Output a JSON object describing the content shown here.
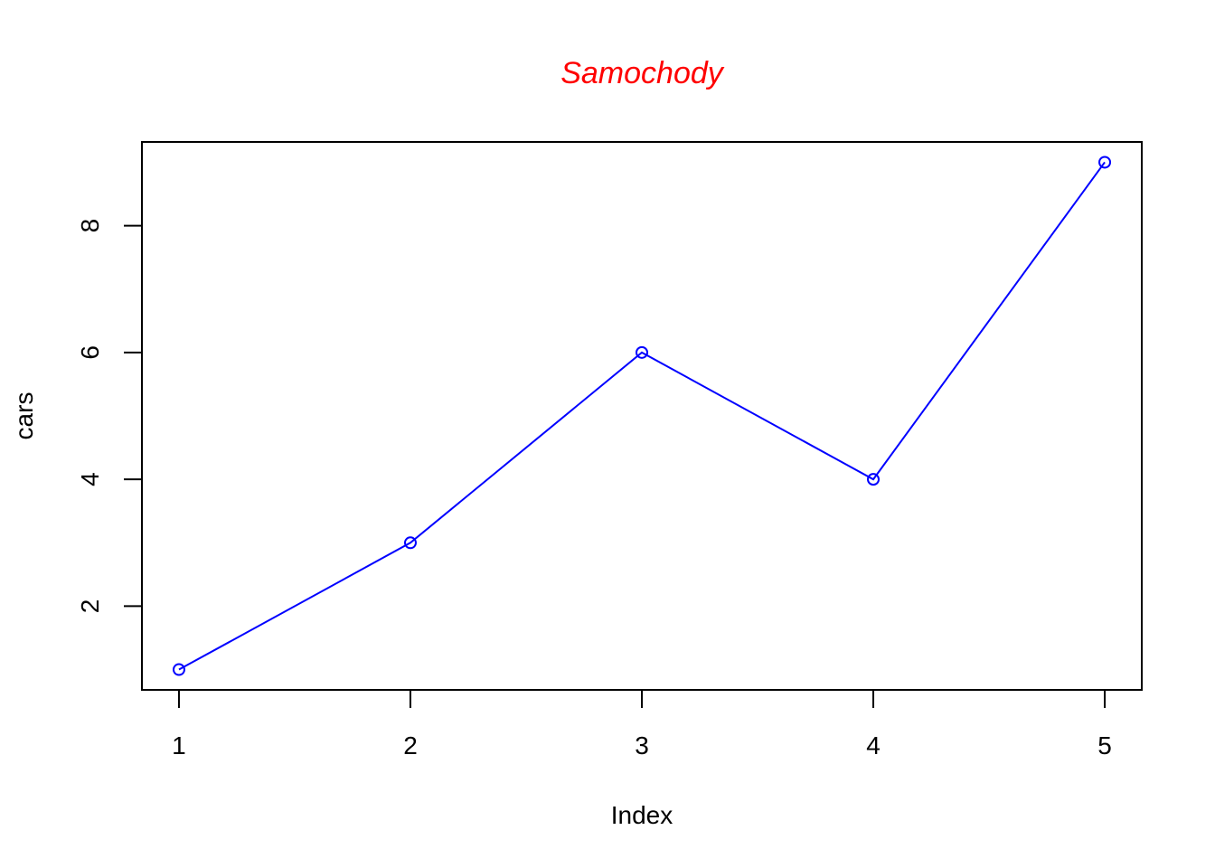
{
  "chart_data": {
    "type": "line",
    "title": "Samochody",
    "title_color": "#ff0000",
    "xlabel": "Index",
    "ylabel": "cars",
    "x": [
      1,
      2,
      3,
      4,
      5
    ],
    "series": [
      {
        "values": [
          1,
          3,
          6,
          4,
          9
        ],
        "color": "#0000ff",
        "marker": "open-circle"
      }
    ],
    "xlim": [
      0.84,
      5.16
    ],
    "ylim": [
      0.68,
      9.32
    ],
    "x_ticks": [
      1,
      2,
      3,
      4,
      5
    ],
    "y_ticks": [
      2,
      4,
      6,
      8
    ],
    "grid": false,
    "legend": "none"
  }
}
